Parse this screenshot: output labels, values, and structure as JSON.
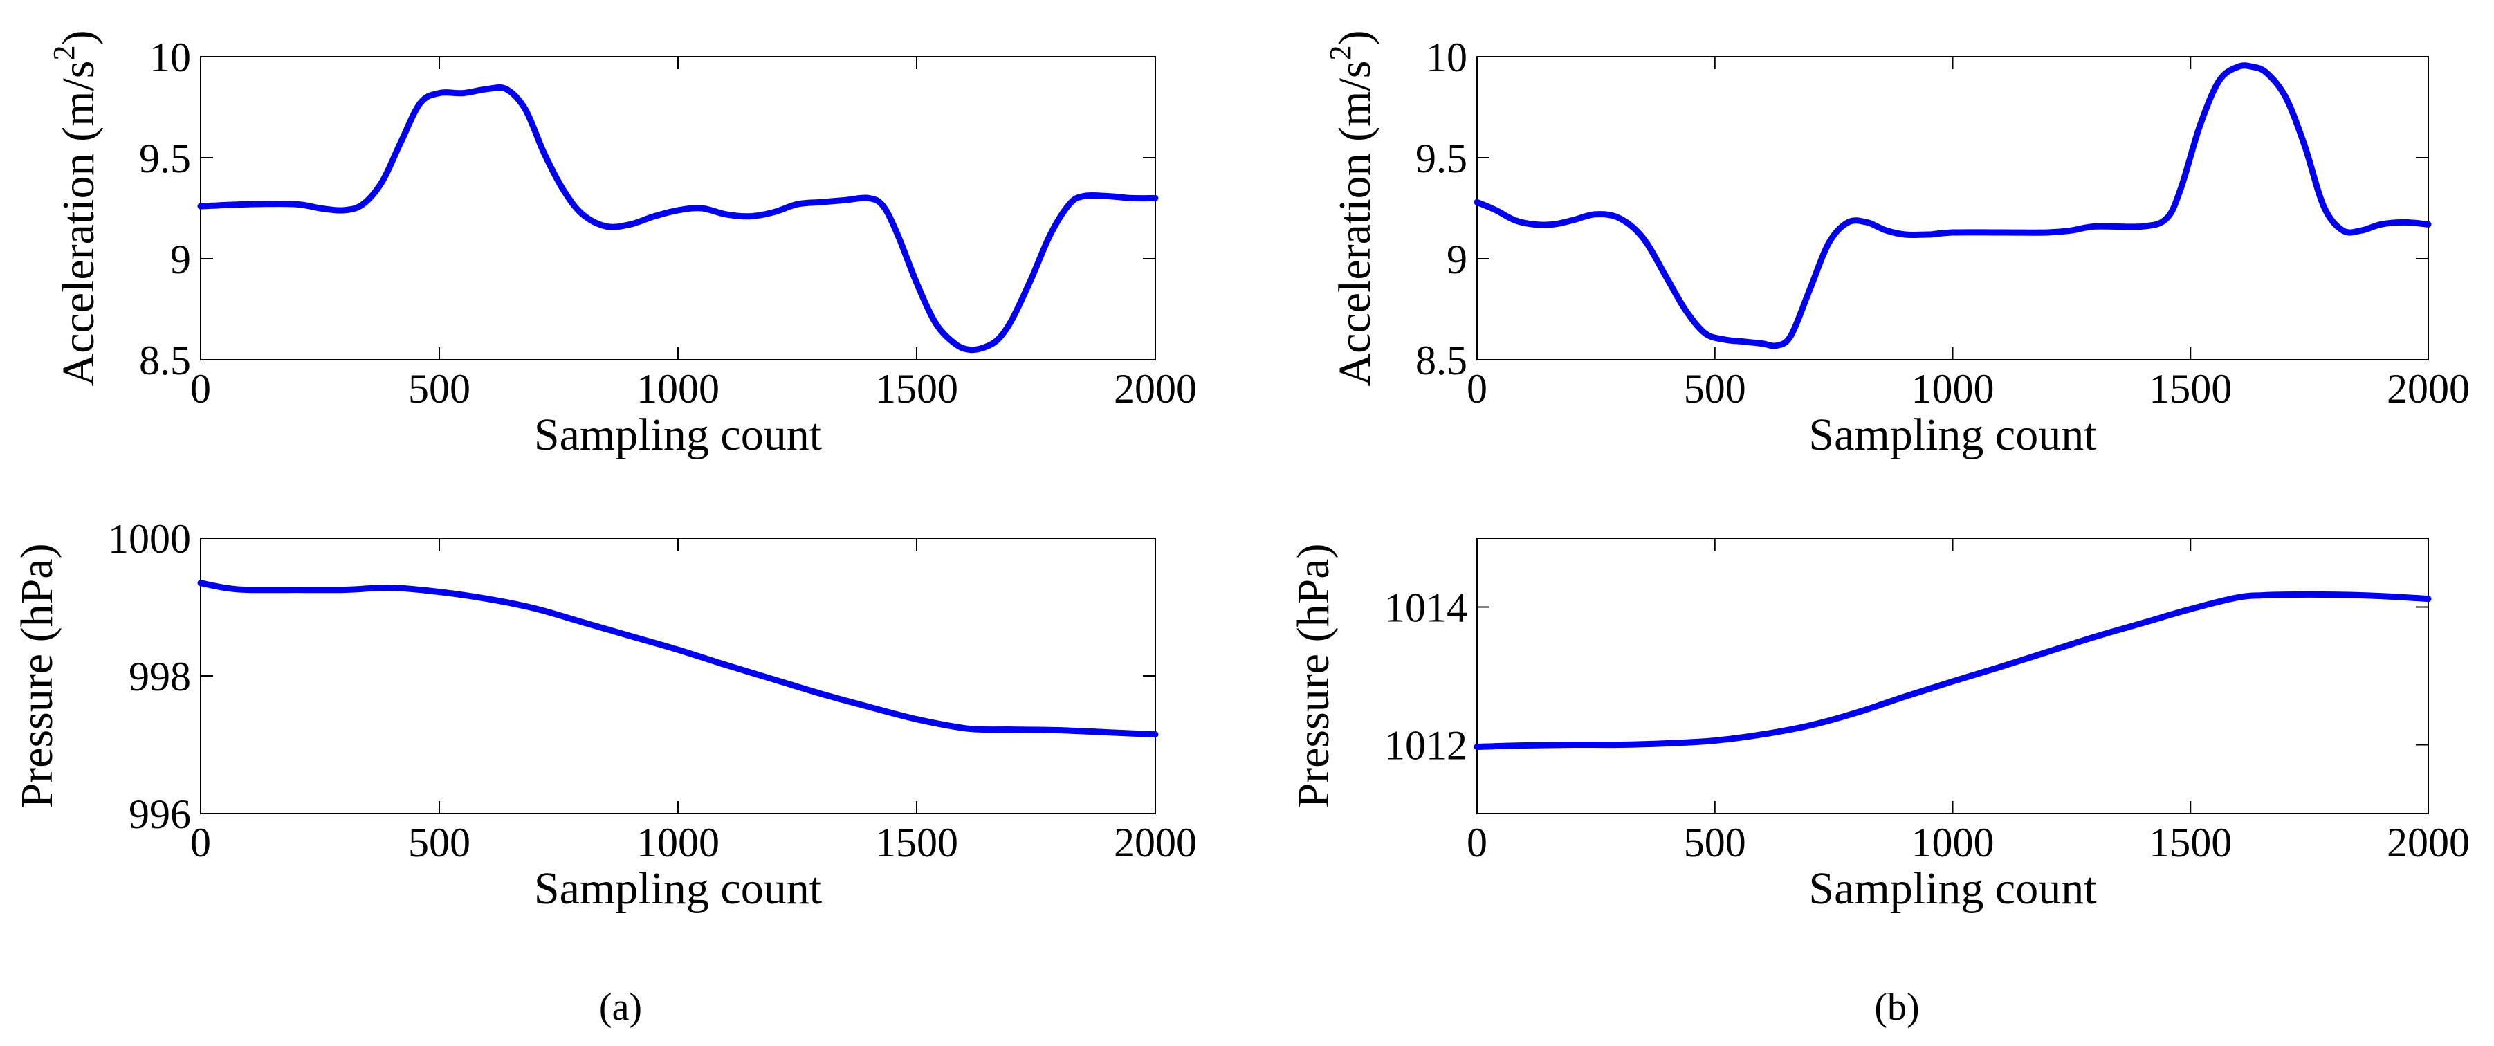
{
  "colors": {
    "series": "#0000ee",
    "axes": "#000000",
    "background": "#ffffff"
  },
  "chart_data": [
    {
      "type": "line",
      "panel": "a",
      "position": "top",
      "title": "",
      "xlabel": "Sampling count",
      "ylabel": "Acceleration (m/s",
      "ylabel_superscript": "2",
      "ylabel_suffix": ")",
      "xlim": [
        0,
        2000
      ],
      "ylim": [
        8.5,
        10
      ],
      "xticks": [
        0,
        500,
        1000,
        1500,
        2000
      ],
      "xtick_labels": [
        "0",
        "500",
        "1000",
        "1500",
        "2000"
      ],
      "yticks": [
        8.5,
        9,
        9.5,
        10
      ],
      "ytick_labels": [
        "8.5",
        "9",
        "9.5",
        "10"
      ],
      "grid": false,
      "series": [
        {
          "name": "acceleration",
          "x": [
            0,
            100,
            200,
            250,
            300,
            340,
            380,
            420,
            460,
            500,
            550,
            600,
            640,
            680,
            720,
            760,
            800,
            850,
            900,
            950,
            1000,
            1050,
            1100,
            1150,
            1200,
            1250,
            1300,
            1350,
            1400,
            1430,
            1460,
            1500,
            1540,
            1580,
            1610,
            1640,
            1670,
            1700,
            1740,
            1780,
            1820,
            1850,
            1900,
            1950,
            2000
          ],
          "y": [
            9.26,
            9.27,
            9.27,
            9.25,
            9.24,
            9.27,
            9.38,
            9.58,
            9.77,
            9.82,
            9.82,
            9.84,
            9.84,
            9.74,
            9.52,
            9.34,
            9.22,
            9.16,
            9.17,
            9.21,
            9.24,
            9.25,
            9.22,
            9.21,
            9.23,
            9.27,
            9.28,
            9.29,
            9.3,
            9.26,
            9.12,
            8.88,
            8.68,
            8.58,
            8.55,
            8.56,
            8.6,
            8.7,
            8.9,
            9.12,
            9.27,
            9.31,
            9.31,
            9.3,
            9.3
          ]
        }
      ]
    },
    {
      "type": "line",
      "panel": "a",
      "position": "bottom",
      "title": "",
      "xlabel": "Sampling count",
      "ylabel": "Pressure (hPa)",
      "xlim": [
        0,
        2000
      ],
      "ylim": [
        996,
        1000
      ],
      "xticks": [
        0,
        500,
        1000,
        1500,
        2000
      ],
      "xtick_labels": [
        "0",
        "500",
        "1000",
        "1500",
        "2000"
      ],
      "yticks": [
        996,
        998,
        1000
      ],
      "ytick_labels": [
        "996",
        "998",
        "1000"
      ],
      "grid": false,
      "series": [
        {
          "name": "pressure",
          "x": [
            0,
            50,
            100,
            200,
            300,
            400,
            500,
            600,
            700,
            800,
            900,
            1000,
            1100,
            1200,
            1300,
            1400,
            1500,
            1600,
            1650,
            1700,
            1800,
            1900,
            2000
          ],
          "y": [
            999.35,
            999.28,
            999.25,
            999.25,
            999.25,
            999.28,
            999.22,
            999.12,
            998.98,
            998.78,
            998.58,
            998.38,
            998.16,
            997.95,
            997.74,
            997.55,
            997.37,
            997.24,
            997.22,
            997.22,
            997.21,
            997.18,
            997.15
          ]
        }
      ]
    },
    {
      "type": "line",
      "panel": "b",
      "position": "top",
      "title": "",
      "xlabel": "Sampling count",
      "ylabel": "Acceleration (m/s",
      "ylabel_superscript": "2",
      "ylabel_suffix": ")",
      "xlim": [
        0,
        2000
      ],
      "ylim": [
        8.5,
        10
      ],
      "xticks": [
        0,
        500,
        1000,
        1500,
        2000
      ],
      "xtick_labels": [
        "0",
        "500",
        "1000",
        "1500",
        "2000"
      ],
      "yticks": [
        8.5,
        9,
        9.5,
        10
      ],
      "ytick_labels": [
        "8.5",
        "9",
        "9.5",
        "10"
      ],
      "grid": false,
      "series": [
        {
          "name": "acceleration",
          "x": [
            0,
            40,
            80,
            120,
            160,
            200,
            250,
            300,
            350,
            400,
            440,
            480,
            520,
            560,
            600,
            630,
            660,
            700,
            740,
            780,
            820,
            860,
            900,
            950,
            1000,
            1100,
            1200,
            1250,
            1300,
            1400,
            1450,
            1480,
            1520,
            1560,
            1600,
            1630,
            1660,
            1700,
            1740,
            1780,
            1820,
            1860,
            1900,
            1950,
            2000
          ],
          "y": [
            9.28,
            9.24,
            9.19,
            9.17,
            9.17,
            9.19,
            9.22,
            9.2,
            9.1,
            8.9,
            8.74,
            8.63,
            8.6,
            8.59,
            8.58,
            8.57,
            8.62,
            8.85,
            9.08,
            9.18,
            9.18,
            9.14,
            9.12,
            9.12,
            9.13,
            9.13,
            9.13,
            9.14,
            9.16,
            9.16,
            9.2,
            9.35,
            9.66,
            9.88,
            9.95,
            9.95,
            9.92,
            9.8,
            9.56,
            9.26,
            9.14,
            9.14,
            9.17,
            9.18,
            9.17
          ]
        }
      ]
    },
    {
      "type": "line",
      "panel": "b",
      "position": "bottom",
      "title": "",
      "xlabel": "Sampling count",
      "ylabel": "Pressure (hPa)",
      "xlim": [
        0,
        2000
      ],
      "ylim": [
        1011,
        1015
      ],
      "xticks": [
        0,
        500,
        1000,
        1500,
        2000
      ],
      "xtick_labels": [
        "0",
        "500",
        "1000",
        "1500",
        "2000"
      ],
      "yticks": [
        1012,
        1014
      ],
      "ytick_labels": [
        "1012",
        "1014"
      ],
      "grid": false,
      "series": [
        {
          "name": "pressure",
          "x": [
            0,
            100,
            200,
            300,
            400,
            500,
            600,
            700,
            800,
            900,
            1000,
            1100,
            1200,
            1300,
            1400,
            1500,
            1600,
            1650,
            1700,
            1800,
            1900,
            2000
          ],
          "y": [
            1011.97,
            1011.99,
            1012.0,
            1012.0,
            1012.02,
            1012.06,
            1012.15,
            1012.28,
            1012.47,
            1012.7,
            1012.92,
            1013.13,
            1013.35,
            1013.57,
            1013.77,
            1013.97,
            1014.14,
            1014.17,
            1014.18,
            1014.18,
            1014.16,
            1014.12
          ]
        }
      ]
    }
  ],
  "captions": [
    "(a)",
    "(b)"
  ]
}
